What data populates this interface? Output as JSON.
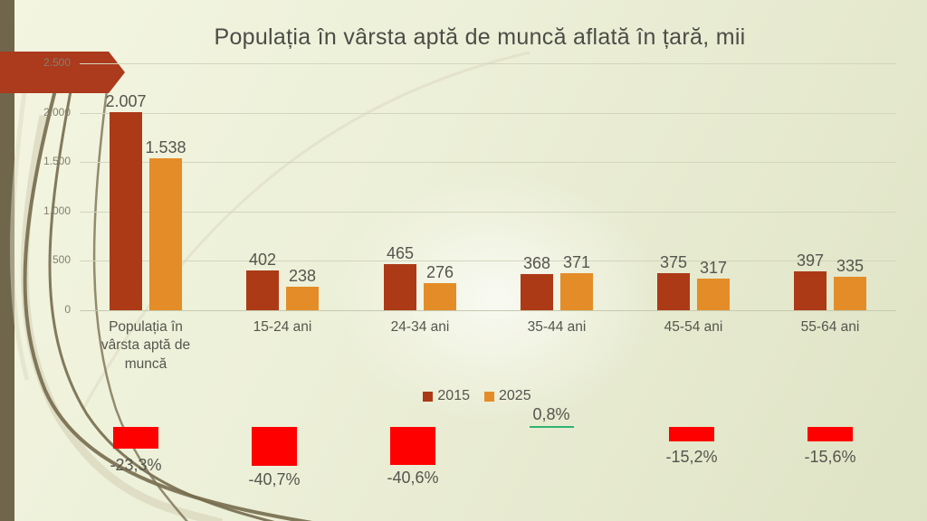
{
  "slide": {
    "title": "Populația în vârsta aptă de muncă aflată în țară, mii"
  },
  "chart_data": {
    "type": "bar",
    "title": "Populația în vârsta aptă de muncă aflată în țară, mii",
    "categories": [
      "Populația în vârsta aptă de muncă",
      "15-24 ani",
      "24-34 ani",
      "35-44 ani",
      "45-54 ani",
      "55-64 ani"
    ],
    "series": [
      {
        "name": "2015",
        "color": "#ad3a17",
        "values": [
          2007,
          402,
          465,
          368,
          375,
          397
        ],
        "labels": [
          "2.007",
          "402",
          "465",
          "368",
          "375",
          "397"
        ]
      },
      {
        "name": "2025",
        "color": "#e48d28",
        "values": [
          1538,
          238,
          276,
          371,
          317,
          335
        ],
        "labels": [
          "1.538",
          "238",
          "276",
          "371",
          "317",
          "335"
        ]
      }
    ],
    "ylim": [
      0,
      2500
    ],
    "yticks": [
      {
        "v": 0,
        "label": "0"
      },
      {
        "v": 500,
        "label": "500"
      },
      {
        "v": 1000,
        "label": "1.000"
      },
      {
        "v": 1500,
        "label": "1.500"
      },
      {
        "v": 2000,
        "label": "2.000"
      },
      {
        "v": 2500,
        "label": "2.500"
      }
    ],
    "grid": true,
    "legend_position": "bottom"
  },
  "changes": [
    {
      "label": "-23,3%",
      "bar": true,
      "underline": false
    },
    {
      "label": "-40,7%",
      "bar": true,
      "underline": false
    },
    {
      "label": "-40,6%",
      "bar": true,
      "underline": false
    },
    {
      "label": "0,8%",
      "bar": false,
      "underline": true
    },
    {
      "label": "-15,2%",
      "bar": true,
      "underline": false
    },
    {
      "label": "-15,6%",
      "bar": true,
      "underline": false
    }
  ],
  "colors": {
    "background_top": "#f3f5e1",
    "background_bottom": "#dfe3c5",
    "sidebar": "#6f664c",
    "arrow": "#ac3a1d",
    "bar_2015": "#ad3a17",
    "bar_2025": "#e48d28",
    "change_box": "#ff0000",
    "underline_green": "#2fb373",
    "text": "#55554d"
  }
}
